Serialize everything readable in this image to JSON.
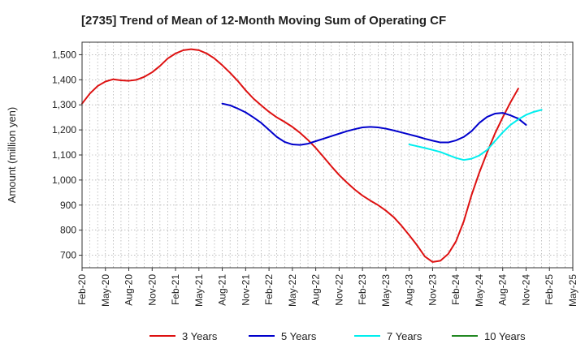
{
  "chart_data": {
    "type": "line",
    "title": "[2735]  Trend of Mean of 12-Month Moving Sum of Operating CF",
    "xlabel": "",
    "ylabel": "Amount (million yen)",
    "ylim": [
      650,
      1550
    ],
    "yticks": [
      700,
      800,
      900,
      1000,
      1100,
      1200,
      1300,
      1400,
      1500
    ],
    "ytick_labels": [
      "700",
      "800",
      "900",
      "1,000",
      "1,100",
      "1,200",
      "1,300",
      "1,400",
      "1,500"
    ],
    "x_tick_labels": [
      "Feb-20",
      "May-20",
      "Aug-20",
      "Nov-20",
      "Feb-21",
      "May-21",
      "Aug-21",
      "Nov-21",
      "Feb-22",
      "May-22",
      "Aug-22",
      "Nov-22",
      "Feb-23",
      "May-23",
      "Aug-23",
      "Nov-23",
      "Feb-24",
      "May-24",
      "Aug-24",
      "Nov-24",
      "Feb-25",
      "May-25"
    ],
    "x_start_label": "Feb-20",
    "grid": true,
    "legend_position": "bottom",
    "series": [
      {
        "name": "3 Years",
        "color": "#dd1111",
        "start_month_index": 0,
        "values": [
          1305,
          1345,
          1375,
          1393,
          1402,
          1398,
          1396,
          1400,
          1412,
          1430,
          1455,
          1485,
          1505,
          1518,
          1522,
          1518,
          1505,
          1485,
          1458,
          1428,
          1395,
          1358,
          1325,
          1298,
          1272,
          1250,
          1232,
          1212,
          1188,
          1160,
          1128,
          1092,
          1055,
          1020,
          990,
          962,
          938,
          918,
          900,
          878,
          852,
          818,
          780,
          740,
          695,
          673,
          678,
          705,
          755,
          835,
          940,
          1030,
          1110,
          1185,
          1250,
          1310,
          1365
        ]
      },
      {
        "name": "5 Years",
        "color": "#0000cc",
        "start_month_index": 18,
        "values": [
          1305,
          1298,
          1285,
          1270,
          1250,
          1228,
          1200,
          1172,
          1152,
          1142,
          1140,
          1145,
          1155,
          1165,
          1175,
          1185,
          1195,
          1203,
          1210,
          1212,
          1210,
          1205,
          1198,
          1190,
          1182,
          1174,
          1165,
          1157,
          1150,
          1150,
          1158,
          1172,
          1195,
          1228,
          1252,
          1265,
          1268,
          1258,
          1245,
          1220
        ]
      },
      {
        "name": "7 Years",
        "color": "#00eeee",
        "start_month_index": 42,
        "values": [
          1142,
          1135,
          1128,
          1120,
          1112,
          1100,
          1088,
          1080,
          1085,
          1098,
          1120,
          1155,
          1190,
          1220,
          1242,
          1260,
          1272,
          1280
        ]
      },
      {
        "name": "10 Years",
        "color": "#228822",
        "start_month_index": 0,
        "values": []
      }
    ]
  }
}
